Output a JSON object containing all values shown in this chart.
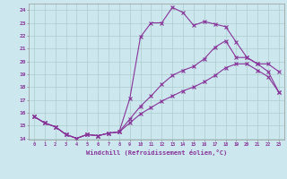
{
  "xlabel": "Windchill (Refroidissement éolien,°C)",
  "background_color": "#cce8ee",
  "grid_color": "#aacccc",
  "line_color": "#883399",
  "ylim": [
    13.9,
    24.5
  ],
  "xlim": [
    -0.5,
    23.5
  ],
  "line1_x": [
    0,
    1,
    2,
    3,
    4,
    5,
    6,
    7,
    8,
    9,
    10,
    11,
    12,
    13,
    14,
    15,
    16,
    17,
    18,
    19,
    20,
    21,
    22,
    23
  ],
  "line1_y": [
    15.7,
    15.2,
    14.9,
    14.3,
    14.0,
    14.3,
    14.2,
    14.4,
    14.5,
    17.1,
    21.9,
    23.0,
    23.0,
    24.2,
    23.8,
    22.8,
    23.1,
    22.9,
    22.7,
    21.5,
    20.3,
    19.8,
    19.2,
    17.6
  ],
  "line2_x": [
    0,
    1,
    2,
    3,
    4,
    5,
    6,
    7,
    8,
    9,
    10,
    11,
    12,
    13,
    14,
    15,
    16,
    17,
    18,
    19,
    20,
    21,
    22,
    23
  ],
  "line2_y": [
    15.7,
    15.2,
    14.9,
    14.3,
    14.0,
    14.3,
    14.2,
    14.4,
    14.5,
    15.5,
    16.5,
    17.3,
    18.2,
    18.9,
    19.3,
    19.6,
    20.2,
    21.1,
    21.6,
    20.3,
    20.3,
    19.8,
    19.8,
    19.2
  ],
  "line3_x": [
    0,
    1,
    2,
    3,
    4,
    5,
    6,
    7,
    8,
    9,
    10,
    11,
    12,
    13,
    14,
    15,
    16,
    17,
    18,
    19,
    20,
    21,
    22,
    23
  ],
  "line3_y": [
    15.7,
    15.2,
    14.9,
    14.3,
    14.0,
    14.3,
    14.2,
    14.4,
    14.5,
    15.2,
    15.9,
    16.4,
    16.9,
    17.3,
    17.7,
    18.0,
    18.4,
    18.9,
    19.5,
    19.8,
    19.8,
    19.3,
    18.8,
    17.6
  ],
  "x_ticks": [
    0,
    1,
    2,
    3,
    4,
    5,
    6,
    7,
    8,
    9,
    10,
    11,
    12,
    13,
    14,
    15,
    16,
    17,
    18,
    19,
    20,
    21,
    22,
    23
  ],
  "y_ticks": [
    14,
    15,
    16,
    17,
    18,
    19,
    20,
    21,
    22,
    23,
    24
  ]
}
